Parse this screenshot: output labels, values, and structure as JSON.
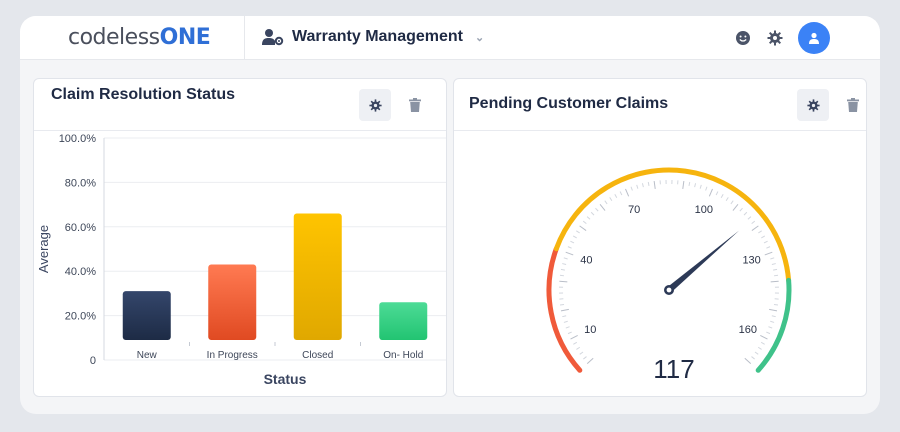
{
  "header": {
    "logo_part1": "codeless",
    "logo_part2": "ONE",
    "app_title": "Warranty Management"
  },
  "widgets": {
    "claim_status": {
      "title": "Claim Resolution Status"
    },
    "pending_claims": {
      "title": "Pending Customer Claims",
      "value_label": "117"
    }
  },
  "chart_data": [
    {
      "type": "bar",
      "categories": [
        "New",
        "In Progress",
        "Closed",
        "On- Hold"
      ],
      "values": [
        31,
        43,
        66,
        26
      ],
      "colors": [
        [
          "#34466b",
          "#1d2b45"
        ],
        [
          "#ff7a52",
          "#e04a22"
        ],
        [
          "#ffc400",
          "#e0a800"
        ],
        [
          "#4ddb96",
          "#22c472"
        ]
      ],
      "yticks": [
        "0",
        "20.0%",
        "40.0%",
        "60.0%",
        "80.0%",
        "100.0%"
      ],
      "ylim": [
        0,
        100
      ],
      "xlabel": "Status",
      "ylabel": "Average",
      "grid": true
    },
    {
      "type": "gauge",
      "value": 117,
      "min": 0,
      "max": 170,
      "tick_labels": [
        10,
        40,
        70,
        100,
        130,
        160
      ],
      "bands": [
        {
          "from": 0,
          "to": 40,
          "color": "#f05a3a"
        },
        {
          "from": 40,
          "to": 140,
          "color": "#f6b40e"
        },
        {
          "from": 140,
          "to": 170,
          "color": "#3fc28a"
        }
      ]
    }
  ]
}
